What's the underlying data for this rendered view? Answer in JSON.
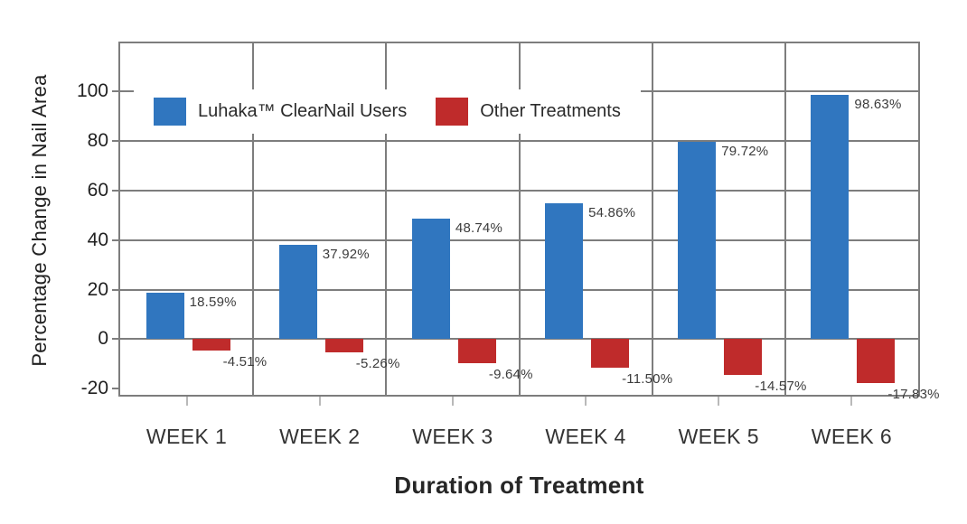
{
  "figure": {
    "background": "#ffffff"
  },
  "chart_data": {
    "type": "bar",
    "title": "",
    "xlabel": "Duration of Treatment",
    "ylabel": "Percentage Change in Nail Area",
    "categories": [
      "WEEK 1",
      "WEEK 2",
      "WEEK 3",
      "WEEK 4",
      "WEEK 5",
      "WEEK 6"
    ],
    "series": [
      {
        "name": "Luhaka™ ClearNail Users",
        "key": "luhaka-clearnail-users",
        "color": "#3076BF",
        "values": [
          18.59,
          37.92,
          48.74,
          54.86,
          79.72,
          98.63
        ],
        "labels": [
          "18.59%",
          "37.92%",
          "48.74%",
          "54.86%",
          "79.72%",
          "98.63%"
        ]
      },
      {
        "name": "Other Treatments",
        "key": "other-treatments",
        "color": "#BF2B2B",
        "values": [
          -4.51,
          -5.26,
          -9.64,
          -11.5,
          -14.57,
          -17.83
        ],
        "labels": [
          "-4.51%",
          "-5.26%",
          "-9.64%",
          "-11.50%",
          "-14.57%",
          "-17.83%"
        ]
      }
    ],
    "y_ticks": [
      -20,
      0,
      20,
      40,
      60,
      80,
      100
    ],
    "gridline_y_values": [
      0,
      20,
      40,
      60,
      80,
      100
    ],
    "ylim": [
      -22.5,
      119.5
    ],
    "grid": true,
    "legend_position": "top-left-inside"
  },
  "colors": {
    "grid": "#7d7d7d",
    "tick_stub": "#b9b9b9",
    "tick_text": "#212121",
    "value_label_text": "#3c3c3c",
    "axis_title_text": "#262626",
    "legend_text": "#2b2b2b",
    "legend_background": "#ffffff"
  }
}
